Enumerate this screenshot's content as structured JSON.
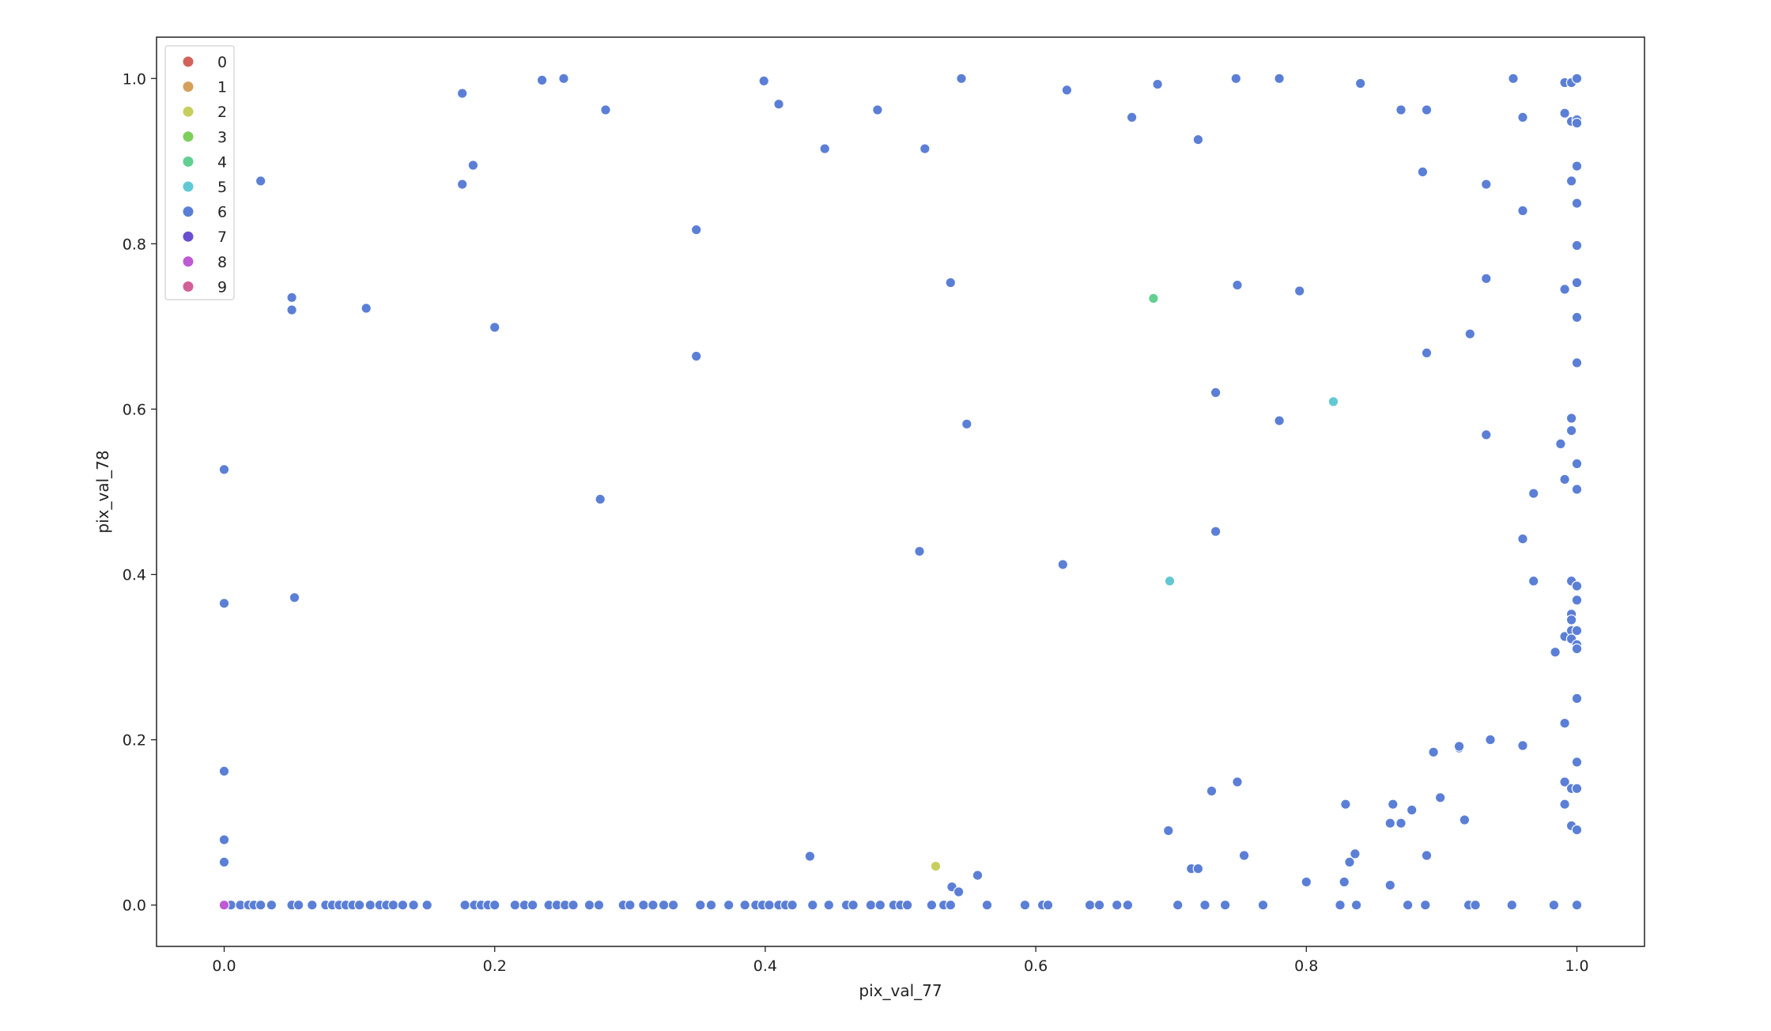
{
  "chart_data": {
    "type": "scatter",
    "xlabel": "pix_val_77",
    "ylabel": "pix_val_78",
    "xlim": [
      -0.05,
      1.05
    ],
    "ylim": [
      -0.05,
      1.05
    ],
    "xticks": [
      "0.0",
      "0.2",
      "0.4",
      "0.6",
      "0.8",
      "1.0"
    ],
    "yticks": [
      "0.0",
      "0.2",
      "0.4",
      "0.6",
      "0.8",
      "1.0"
    ],
    "grid": false,
    "legend_position": "top-left",
    "legend": [
      {
        "label": "0",
        "color": "#d2635b"
      },
      {
        "label": "1",
        "color": "#d4a05c"
      },
      {
        "label": "2",
        "color": "#c6cf5e"
      },
      {
        "label": "3",
        "color": "#7ccf5b"
      },
      {
        "label": "4",
        "color": "#63cf92"
      },
      {
        "label": "5",
        "color": "#62c9d4"
      },
      {
        "label": "6",
        "color": "#5b7fd6"
      },
      {
        "label": "7",
        "color": "#6a4fd0"
      },
      {
        "label": "8",
        "color": "#be5ad4"
      },
      {
        "label": "9",
        "color": "#d35f97"
      }
    ],
    "series": [
      {
        "name": "2",
        "color": "#c6cf5e",
        "points": [
          [
            0.526,
            0.047
          ]
        ]
      },
      {
        "name": "4",
        "color": "#63cf92",
        "points": [
          [
            0.687,
            0.734
          ]
        ]
      },
      {
        "name": "5",
        "color": "#62c9d4",
        "points": [
          [
            0.82,
            0.609
          ],
          [
            0.699,
            0.392
          ]
        ]
      },
      {
        "name": "8",
        "color": "#be5ad4",
        "points": [
          [
            0.0,
            0.0
          ]
        ]
      },
      {
        "name": "6",
        "color": "#5b7fd6",
        "points": [
          [
            0.0,
            0.0
          ],
          [
            0.005,
            0.0
          ],
          [
            0.012,
            0.0
          ],
          [
            0.018,
            0.0
          ],
          [
            0.022,
            0.0
          ],
          [
            0.027,
            0.0
          ],
          [
            0.035,
            0.0
          ],
          [
            0.05,
            0.0
          ],
          [
            0.055,
            0.0
          ],
          [
            0.065,
            0.0
          ],
          [
            0.075,
            0.0
          ],
          [
            0.08,
            0.0
          ],
          [
            0.085,
            0.0
          ],
          [
            0.09,
            0.0
          ],
          [
            0.095,
            0.0
          ],
          [
            0.1,
            0.0
          ],
          [
            0.108,
            0.0
          ],
          [
            0.115,
            0.0
          ],
          [
            0.12,
            0.0
          ],
          [
            0.125,
            0.0
          ],
          [
            0.132,
            0.0
          ],
          [
            0.14,
            0.0
          ],
          [
            0.15,
            0.0
          ],
          [
            0.178,
            0.0
          ],
          [
            0.185,
            0.0
          ],
          [
            0.19,
            0.0
          ],
          [
            0.195,
            0.0
          ],
          [
            0.2,
            0.0
          ],
          [
            0.215,
            0.0
          ],
          [
            0.222,
            0.0
          ],
          [
            0.228,
            0.0
          ],
          [
            0.24,
            0.0
          ],
          [
            0.246,
            0.0
          ],
          [
            0.252,
            0.0
          ],
          [
            0.258,
            0.0
          ],
          [
            0.27,
            0.0
          ],
          [
            0.277,
            0.0
          ],
          [
            0.295,
            0.0
          ],
          [
            0.3,
            0.0
          ],
          [
            0.31,
            0.0
          ],
          [
            0.317,
            0.0
          ],
          [
            0.325,
            0.0
          ],
          [
            0.332,
            0.0
          ],
          [
            0.352,
            0.0
          ],
          [
            0.36,
            0.0
          ],
          [
            0.373,
            0.0
          ],
          [
            0.385,
            0.0
          ],
          [
            0.393,
            0.0
          ],
          [
            0.398,
            0.0
          ],
          [
            0.403,
            0.0
          ],
          [
            0.41,
            0.0
          ],
          [
            0.415,
            0.0
          ],
          [
            0.42,
            0.0
          ],
          [
            0.435,
            0.0
          ],
          [
            0.447,
            0.0
          ],
          [
            0.46,
            0.0
          ],
          [
            0.465,
            0.0
          ],
          [
            0.478,
            0.0
          ],
          [
            0.485,
            0.0
          ],
          [
            0.495,
            0.0
          ],
          [
            0.5,
            0.0
          ],
          [
            0.505,
            0.0
          ],
          [
            0.523,
            0.0
          ],
          [
            0.532,
            0.0
          ],
          [
            0.537,
            0.0
          ],
          [
            0.564,
            0.0
          ],
          [
            0.592,
            0.0
          ],
          [
            0.605,
            0.0
          ],
          [
            0.609,
            0.0
          ],
          [
            0.64,
            0.0
          ],
          [
            0.647,
            0.0
          ],
          [
            0.66,
            0.0
          ],
          [
            0.668,
            0.0
          ],
          [
            0.705,
            0.0
          ],
          [
            0.725,
            0.0
          ],
          [
            0.74,
            0.0
          ],
          [
            0.768,
            0.0
          ],
          [
            0.825,
            0.0
          ],
          [
            0.837,
            0.0
          ],
          [
            0.875,
            0.0
          ],
          [
            0.888,
            0.0
          ],
          [
            0.92,
            0.0
          ],
          [
            0.925,
            0.0
          ],
          [
            0.952,
            0.0
          ],
          [
            0.983,
            0.0
          ],
          [
            1.0,
            0.0
          ],
          [
            0.0,
            0.527
          ],
          [
            0.0,
            0.365
          ],
          [
            0.0,
            0.162
          ],
          [
            0.0,
            0.079
          ],
          [
            0.0,
            0.052
          ],
          [
            0.052,
            0.372
          ],
          [
            0.027,
            0.876
          ],
          [
            0.05,
            0.735
          ],
          [
            0.05,
            0.72
          ],
          [
            0.105,
            0.722
          ],
          [
            0.176,
            0.982
          ],
          [
            0.176,
            0.872
          ],
          [
            0.184,
            0.895
          ],
          [
            0.2,
            0.699
          ],
          [
            0.235,
            0.998
          ],
          [
            0.251,
            1.0
          ],
          [
            0.282,
            0.962
          ],
          [
            0.278,
            0.491
          ],
          [
            0.349,
            0.817
          ],
          [
            0.349,
            0.664
          ],
          [
            0.399,
            0.997
          ],
          [
            0.41,
            0.969
          ],
          [
            0.444,
            0.915
          ],
          [
            0.483,
            0.962
          ],
          [
            0.433,
            0.059
          ],
          [
            0.518,
            0.915
          ],
          [
            0.537,
            0.753
          ],
          [
            0.545,
            1.0
          ],
          [
            0.549,
            0.582
          ],
          [
            0.514,
            0.428
          ],
          [
            0.538,
            0.022
          ],
          [
            0.543,
            0.016
          ],
          [
            0.557,
            0.036
          ],
          [
            0.62,
            0.412
          ],
          [
            0.623,
            0.986
          ],
          [
            0.671,
            0.953
          ],
          [
            0.69,
            0.993
          ],
          [
            0.698,
            0.09
          ],
          [
            0.72,
            0.926
          ],
          [
            0.715,
            0.044
          ],
          [
            0.72,
            0.044
          ],
          [
            0.73,
            0.138
          ],
          [
            0.733,
            0.62
          ],
          [
            0.733,
            0.452
          ],
          [
            0.748,
            1.0
          ],
          [
            0.749,
            0.75
          ],
          [
            0.749,
            0.149
          ],
          [
            0.754,
            0.06
          ],
          [
            0.78,
            1.0
          ],
          [
            0.78,
            0.586
          ],
          [
            0.795,
            0.743
          ],
          [
            0.8,
            0.028
          ],
          [
            0.829,
            0.122
          ],
          [
            0.828,
            0.028
          ],
          [
            0.832,
            0.052
          ],
          [
            0.836,
            0.062
          ],
          [
            0.84,
            0.994
          ],
          [
            0.862,
            0.099
          ],
          [
            0.864,
            0.122
          ],
          [
            0.87,
            0.099
          ],
          [
            0.87,
            0.962
          ],
          [
            0.862,
            0.024
          ],
          [
            0.878,
            0.115
          ],
          [
            0.886,
            0.887
          ],
          [
            0.889,
            0.962
          ],
          [
            0.889,
            0.668
          ],
          [
            0.889,
            0.06
          ],
          [
            0.894,
            0.185
          ],
          [
            0.899,
            0.13
          ],
          [
            0.913,
            0.19
          ],
          [
            0.913,
            0.192
          ],
          [
            0.917,
            0.103
          ],
          [
            0.921,
            0.691
          ],
          [
            0.933,
            0.872
          ],
          [
            0.933,
            0.758
          ],
          [
            0.933,
            0.569
          ],
          [
            0.936,
            0.2
          ],
          [
            0.953,
            1.0
          ],
          [
            0.96,
            0.953
          ],
          [
            0.96,
            0.84
          ],
          [
            0.96,
            0.443
          ],
          [
            0.96,
            0.193
          ],
          [
            0.968,
            0.498
          ],
          [
            0.968,
            0.392
          ],
          [
            0.984,
            0.306
          ],
          [
            0.988,
            0.558
          ],
          [
            0.991,
            0.995
          ],
          [
            0.991,
            0.958
          ],
          [
            0.991,
            0.745
          ],
          [
            0.991,
            0.515
          ],
          [
            0.991,
            0.325
          ],
          [
            0.991,
            0.22
          ],
          [
            0.991,
            0.149
          ],
          [
            0.991,
            0.122
          ],
          [
            0.996,
            0.995
          ],
          [
            0.996,
            0.948
          ],
          [
            0.996,
            0.876
          ],
          [
            0.996,
            0.589
          ],
          [
            0.996,
            0.574
          ],
          [
            0.996,
            0.392
          ],
          [
            0.996,
            0.352
          ],
          [
            0.996,
            0.345
          ],
          [
            0.996,
            0.332
          ],
          [
            0.996,
            0.322
          ],
          [
            0.996,
            0.141
          ],
          [
            0.996,
            0.096
          ],
          [
            1.0,
            1.0
          ],
          [
            1.0,
            0.95
          ],
          [
            1.0,
            0.946
          ],
          [
            1.0,
            0.894
          ],
          [
            1.0,
            0.849
          ],
          [
            1.0,
            0.798
          ],
          [
            1.0,
            0.753
          ],
          [
            1.0,
            0.711
          ],
          [
            1.0,
            0.656
          ],
          [
            1.0,
            0.534
          ],
          [
            1.0,
            0.503
          ],
          [
            1.0,
            0.386
          ],
          [
            1.0,
            0.369
          ],
          [
            1.0,
            0.332
          ],
          [
            1.0,
            0.315
          ],
          [
            1.0,
            0.31
          ],
          [
            1.0,
            0.25
          ],
          [
            1.0,
            0.173
          ],
          [
            1.0,
            0.141
          ],
          [
            1.0,
            0.091
          ]
        ]
      }
    ]
  }
}
